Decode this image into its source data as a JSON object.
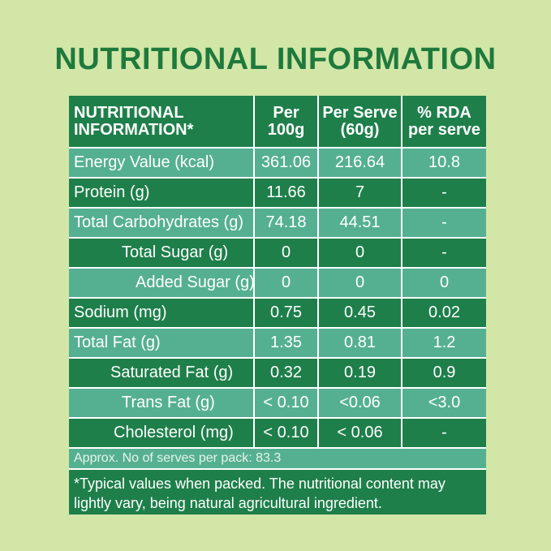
{
  "title": "NUTRITIONAL INFORMATION",
  "table": {
    "headers": [
      {
        "line1": "NUTRITIONAL",
        "line2": "INFORMATION*"
      },
      {
        "line1": "Per",
        "line2": "100g"
      },
      {
        "line1": "Per Serve",
        "line2": "(60g)"
      },
      {
        "line1": "% RDA",
        "line2": "per serve"
      }
    ],
    "rows": [
      {
        "label": "Energy Value  (kcal)",
        "per100": "361.06",
        "perServe": "216.64",
        "rda": "10.8"
      },
      {
        "label": "Protein  (g)",
        "per100": "11.66",
        "perServe": "7",
        "rda": "-"
      },
      {
        "label": "Total Carbohydrates  (g)",
        "per100": "74.18",
        "perServe": "44.51",
        "rda": "-"
      },
      {
        "label": "Total Sugar (g)",
        "per100": "0",
        "perServe": "0",
        "rda": "-"
      },
      {
        "label": "Added Sugar (g)",
        "per100": "0",
        "perServe": "0",
        "rda": "0"
      },
      {
        "label": "Sodium (mg)",
        "per100": "0.75",
        "perServe": "0.45",
        "rda": "0.02"
      },
      {
        "label": "Total Fat (g)",
        "per100": "1.35",
        "perServe": "0.81",
        "rda": "1.2"
      },
      {
        "label": "Saturated Fat (g)",
        "per100": "0.32",
        "perServe": "0.19",
        "rda": "0.9"
      },
      {
        "label": "Trans Fat (g)",
        "per100": "< 0.10",
        "perServe": "<0.06",
        "rda": "<3.0"
      },
      {
        "label": "Cholesterol  (mg)",
        "per100": "< 0.10",
        "perServe": "< 0.06",
        "rda": "-"
      }
    ],
    "serves_note": "Approx. No of serves per pack: 83.3",
    "footnote": "*Typical values when packed. The nutritional content may lightly vary, being natural agricultural ingredient."
  }
}
